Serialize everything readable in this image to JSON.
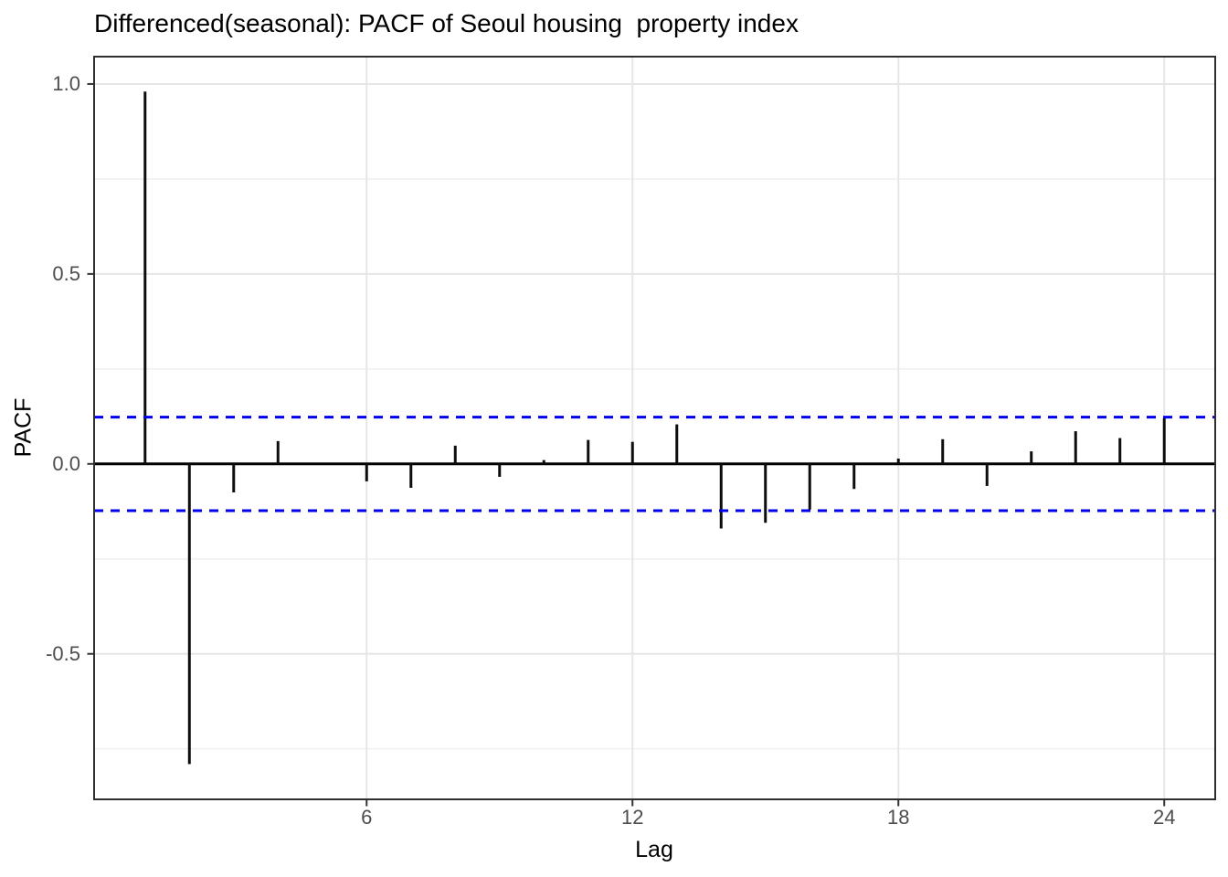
{
  "chart_data": {
    "type": "bar",
    "subtype": "pacf-stem-plot",
    "title": "Differenced(seasonal): PACF of Seoul housing  property index",
    "xlabel": "Lag",
    "ylabel": "PACF",
    "x": [
      1,
      2,
      3,
      4,
      5,
      6,
      7,
      8,
      9,
      10,
      11,
      12,
      13,
      14,
      15,
      16,
      17,
      18,
      19,
      20,
      21,
      22,
      23,
      24
    ],
    "values": [
      0.98,
      -0.79,
      -0.075,
      0.06,
      0.0,
      -0.046,
      -0.063,
      0.048,
      -0.034,
      0.01,
      0.063,
      0.058,
      0.104,
      -0.17,
      -0.155,
      -0.12,
      -0.066,
      0.014,
      0.065,
      -0.058,
      0.033,
      0.086,
      0.068,
      0.12
    ],
    "confidence_bands": {
      "upper": 0.123,
      "lower": -0.123,
      "line_style": "dashed"
    },
    "x_ticks": [
      6,
      12,
      18,
      24
    ],
    "x_tick_labels": [
      "6",
      "12",
      "18",
      "24"
    ],
    "y_ticks": [
      -0.5,
      0.0,
      0.5,
      1.0
    ],
    "y_tick_labels": [
      "-0.5",
      "0.0",
      "0.5",
      "1.0"
    ],
    "y_minor_gridlines": [
      -0.75,
      -0.25,
      0.25,
      0.75
    ],
    "x_major_gridlines": [
      6,
      12,
      18,
      24
    ],
    "xlim": [
      -0.15,
      25.15
    ],
    "ylim": [
      -0.883,
      1.072
    ],
    "zero_line": true,
    "grid": "on",
    "legend_position": "none",
    "colors": {
      "bar": "#0d0d0d",
      "zero_line": "#000000",
      "conf_band": "#0000ee",
      "grid_major": "#e6e6e6",
      "grid_minor": "#f1f1f1",
      "panel_border": "#2e2e2e",
      "tick_mark": "#333333",
      "tick_label": "#4d4d4d",
      "axis_title": "#000000",
      "title": "#000000",
      "background": "#ffffff"
    }
  },
  "layout_labels": {
    "figure_name": "pacf-plot"
  }
}
